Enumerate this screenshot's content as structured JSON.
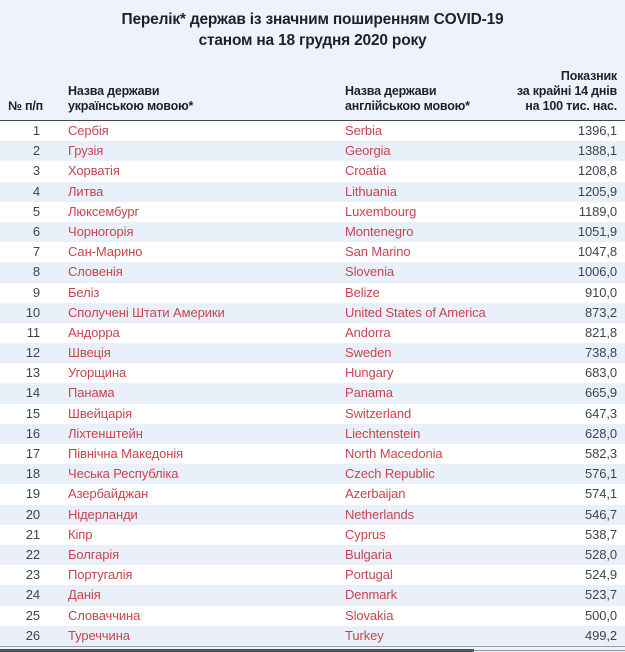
{
  "page": {
    "title_line1": "Перелік* держав із значним поширенням COVID-19",
    "title_line2": "станом на 18 грудня 2020 року"
  },
  "table": {
    "headers": {
      "num": "№ п/п",
      "name_uk_line1": "Назва держави",
      "name_uk_line2": "українською мовою*",
      "name_en_line1": "Назва держави",
      "name_en_line2": "англійською мовою*",
      "indicator_line1": "Показник",
      "indicator_line2": "за крайні 14 днів",
      "indicator_line3": "на 100 тис. нас."
    },
    "rows": [
      {
        "num": "1",
        "uk": "Сербія",
        "en": "Serbia",
        "value": "1396,1"
      },
      {
        "num": "2",
        "uk": "Грузія",
        "en": "Georgia",
        "value": "1388,1"
      },
      {
        "num": "3",
        "uk": "Хорватія",
        "en": "Croatia",
        "value": "1208,8"
      },
      {
        "num": "4",
        "uk": "Литва",
        "en": "Lithuania",
        "value": "1205,9"
      },
      {
        "num": "5",
        "uk": "Люксембург",
        "en": "Luxembourg",
        "value": "1189,0"
      },
      {
        "num": "6",
        "uk": "Чорногорія",
        "en": "Montenegro",
        "value": "1051,9"
      },
      {
        "num": "7",
        "uk": "Сан-Марино",
        "en": "San Marino",
        "value": "1047,8"
      },
      {
        "num": "8",
        "uk": "Словенія",
        "en": "Slovenia",
        "value": "1006,0"
      },
      {
        "num": "9",
        "uk": "Беліз",
        "en": "Belize",
        "value": "910,0"
      },
      {
        "num": "10",
        "uk": "Сполучені Штати Америки",
        "en": "United States of America",
        "value": "873,2"
      },
      {
        "num": "11",
        "uk": "Андорра",
        "en": "Andorra",
        "value": "821,8"
      },
      {
        "num": "12",
        "uk": "Швеція",
        "en": "Sweden",
        "value": "738,8"
      },
      {
        "num": "13",
        "uk": "Угорщина",
        "en": "Hungary",
        "value": "683,0"
      },
      {
        "num": "14",
        "uk": "Панама",
        "en": "Panama",
        "value": "665,9"
      },
      {
        "num": "15",
        "uk": "Швейцарія",
        "en": "Switzerland",
        "value": "647,3"
      },
      {
        "num": "16",
        "uk": "Ліхтенштейн",
        "en": "Liechtenstein",
        "value": "628,0"
      },
      {
        "num": "17",
        "uk": "Північна Македонія",
        "en": "North Macedonia",
        "value": "582,3"
      },
      {
        "num": "18",
        "uk": "Чеська Республіка",
        "en": "Czech Republic",
        "value": "576,1"
      },
      {
        "num": "19",
        "uk": "Азербайджан",
        "en": "Azerbaijan",
        "value": "574,1"
      },
      {
        "num": "20",
        "uk": "Нідерланди",
        "en": "Netherlands",
        "value": "546,7"
      },
      {
        "num": "21",
        "uk": "Кіпр",
        "en": "Cyprus",
        "value": "538,7"
      },
      {
        "num": "22",
        "uk": "Болгарія",
        "en": "Bulgaria",
        "value": "528,0"
      },
      {
        "num": "23",
        "uk": "Португалія",
        "en": "Portugal",
        "value": "524,9"
      },
      {
        "num": "24",
        "uk": "Данія",
        "en": "Denmark",
        "value": "523,7"
      },
      {
        "num": "25",
        "uk": "Словаччина",
        "en": "Slovakia",
        "value": "500,0"
      },
      {
        "num": "26",
        "uk": "Туреччина",
        "en": "Turkey",
        "value": "499,2"
      }
    ]
  },
  "colors": {
    "page_background": "#eef2fb",
    "row_stripe": "#e9f0f9",
    "country_name_red": "#c8444e",
    "header_text": "#1c212b",
    "number_text": "#3f444c",
    "header_rule": "#42474f"
  }
}
